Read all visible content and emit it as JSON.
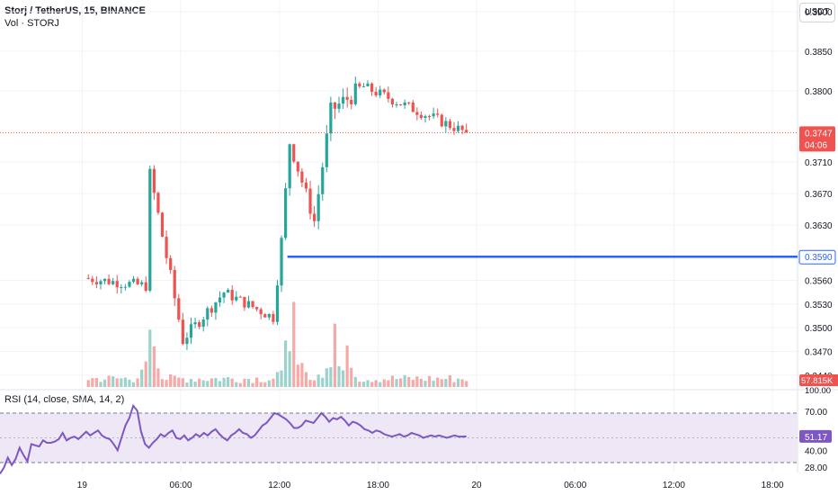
{
  "header": {
    "title": "Storj / TetherUS, 15, BINANCE",
    "volume_label": "Vol · STORJ",
    "rsi_label": "RSI (14, close, SMA, 14, 2)",
    "currency_button": "USDT"
  },
  "colors": {
    "up": "#26a69a",
    "down": "#ef5350",
    "vol_up": "#9bd3cc",
    "vol_down": "#f7a9a7",
    "support_line": "#2962ff",
    "rsi_line": "#7e57c2",
    "rsi_band": "#ede7f6",
    "grid": "#f0f3fa",
    "axis_text": "#131722"
  },
  "chart_data": [
    {
      "type": "candlestick",
      "title": "Storj / TetherUS, 15, BINANCE",
      "ylim": [
        0.3425,
        0.3915
      ],
      "y_ticks": [
        "0.3900",
        "0.3850",
        "0.3800",
        "0.3710",
        "0.3670",
        "0.3630",
        "0.3560",
        "0.3530",
        "0.3500",
        "0.3470",
        "0.3440"
      ],
      "x_ticks": [
        "19",
        "06:00",
        "12:00",
        "18:00",
        "20",
        "06:00",
        "12:00",
        "18:00"
      ],
      "last_price": {
        "value": "0.3747",
        "countdown": "04:06"
      },
      "support_line": {
        "value": "0.3590",
        "label": "0.3590"
      },
      "volume_badge": "57.815K",
      "volume_axis_label": "100.00",
      "segments": [
        {
          "from_time": "19 00:00",
          "to_time": "19 03:45",
          "start": 0.3563,
          "end": 0.3553,
          "volatility": 0.0009
        },
        {
          "from_time": "19 03:45",
          "to_time": "19 04:00",
          "start": 0.3553,
          "end": 0.3695,
          "volatility": 0.001
        },
        {
          "from_time": "19 04:00",
          "to_time": "19 06:00",
          "start": 0.3695,
          "end": 0.3485,
          "volatility": 0.0013
        },
        {
          "from_time": "19 06:00",
          "to_time": "19 08:30",
          "start": 0.3485,
          "end": 0.3545,
          "volatility": 0.001
        },
        {
          "from_time": "19 08:30",
          "to_time": "19 11:30",
          "start": 0.3545,
          "end": 0.3513,
          "volatility": 0.0009
        },
        {
          "from_time": "19 11:30",
          "to_time": "19 12:00",
          "start": 0.3513,
          "end": 0.361,
          "volatility": 0.001
        },
        {
          "from_time": "19 12:00",
          "to_time": "19 12:30",
          "start": 0.361,
          "end": 0.3735,
          "volatility": 0.0012
        },
        {
          "from_time": "19 12:30",
          "to_time": "19 14:00",
          "start": 0.3735,
          "end": 0.3635,
          "volatility": 0.0012
        },
        {
          "from_time": "19 14:00",
          "to_time": "19 15:00",
          "start": 0.3635,
          "end": 0.3775,
          "volatility": 0.0013
        },
        {
          "from_time": "19 15:00",
          "to_time": "19 17:00",
          "start": 0.3775,
          "end": 0.3805,
          "volatility": 0.0015
        },
        {
          "from_time": "19 17:00",
          "to_time": "19 23:15",
          "start": 0.3805,
          "end": 0.3747,
          "volatility": 0.0009
        }
      ],
      "volume_peaks": [
        {
          "time": "19 03:45",
          "level": 0.58
        },
        {
          "time": "19 04:00",
          "level": 0.41
        },
        {
          "time": "19 12:00",
          "level": 0.47
        },
        {
          "time": "19 12:30",
          "level": 0.86
        },
        {
          "time": "19 15:00",
          "level": 0.64
        },
        {
          "time": "19 15:45",
          "level": 0.42
        }
      ]
    },
    {
      "type": "line",
      "title": "RSI (14, close, SMA, 14, 2)",
      "ylim": [
        22,
        78
      ],
      "y_ticks": [
        "70.00",
        "40.00",
        "28.00"
      ],
      "band": [
        30,
        70
      ],
      "current_value": "51.17",
      "series": [
        {
          "name": "RSI",
          "values": [
            21,
            26,
            34,
            28,
            33,
            42,
            36,
            31,
            45,
            44,
            43,
            48,
            46,
            46,
            47,
            49,
            54,
            48,
            50,
            51,
            49,
            52,
            55,
            52,
            54,
            56,
            52,
            50,
            49,
            45,
            40,
            50,
            60,
            66,
            76,
            72,
            55,
            45,
            42,
            46,
            49,
            53,
            51,
            54,
            56,
            50,
            49,
            52,
            48,
            50,
            53,
            51,
            54,
            52,
            55,
            57,
            53,
            50,
            48,
            52,
            54,
            57,
            54,
            53,
            50,
            52,
            56,
            60,
            62,
            66,
            70,
            69,
            67,
            65,
            62,
            58,
            58,
            60,
            64,
            63,
            62,
            66,
            70,
            67,
            63,
            66,
            65,
            67,
            64,
            60,
            63,
            62,
            60,
            57,
            56,
            54,
            56,
            55,
            53,
            52,
            51,
            52,
            53,
            51,
            52,
            54,
            53,
            52,
            50,
            51,
            52,
            51,
            52,
            51,
            50,
            51,
            52,
            51,
            51,
            51.17
          ]
        }
      ]
    }
  ]
}
